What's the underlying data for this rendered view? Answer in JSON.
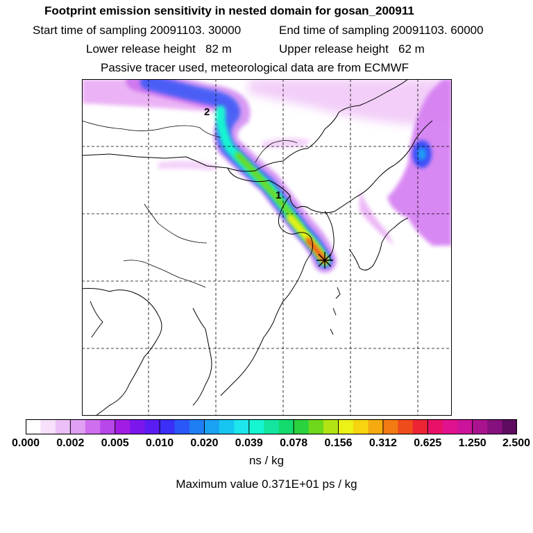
{
  "header": {
    "title": "Footprint emission sensitivity in nested domain for gosan_200911",
    "start": "Start time of sampling 20091103. 30000",
    "end": "End time of sampling 20091103. 60000",
    "lower": "Lower release height   82 m",
    "upper": "Upper release height   62 m",
    "tracer": "Passive tracer used, meteorological data are from ECMWF"
  },
  "map": {
    "receptor_marker": "asterisk",
    "trajectory_labels": [
      "2",
      "1"
    ]
  },
  "colorbar": {
    "ticks": [
      "0.000",
      "0.002",
      "0.005",
      "0.010",
      "0.020",
      "0.039",
      "0.078",
      "0.156",
      "0.312",
      "0.625",
      "1.250",
      "2.500"
    ],
    "colors": [
      "#ffffff",
      "#f6e0fb",
      "#ebbff7",
      "#e0a0f3",
      "#cf6fee",
      "#b847ea",
      "#a21de4",
      "#7b17ec",
      "#5b1cf3",
      "#3b2ff8",
      "#2a58f8",
      "#1e7ff5",
      "#1aa2f2",
      "#17c6f0",
      "#1de6ec",
      "#16f5d2",
      "#14e6a0",
      "#14db6e",
      "#2bd23f",
      "#6ed81c",
      "#b2e414",
      "#ecf116",
      "#f7d410",
      "#f5ab10",
      "#f27b14",
      "#ef4c1c",
      "#ec2434",
      "#e91167",
      "#e0128d",
      "#cc139b",
      "#aa1390",
      "#86107d",
      "#5e0b60"
    ],
    "units": "ns / kg",
    "max_value": "Maximum value  0.371E+01 ps / kg"
  }
}
